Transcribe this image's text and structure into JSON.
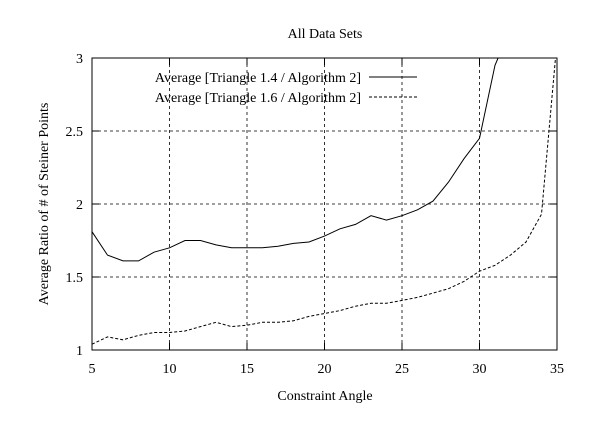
{
  "chart_data": {
    "type": "line",
    "title": "All Data Sets",
    "xlabel": "Constraint Angle",
    "ylabel": "Average Ratio of # of Steiner Points",
    "xlim": [
      5,
      35
    ],
    "ylim": [
      1,
      3
    ],
    "xticks": [
      5,
      10,
      15,
      20,
      25,
      30,
      35
    ],
    "yticks": [
      1,
      1.5,
      2,
      2.5,
      3
    ],
    "xtick_labels": [
      "5",
      "10",
      "15",
      "20",
      "25",
      "30",
      "35"
    ],
    "ytick_labels": [
      "1",
      "1.5",
      "2",
      "2.5",
      "3"
    ],
    "grid": true,
    "legend_position": "top-left",
    "series": [
      {
        "name": "Average [Triangle 1.4 / Algorithm 2]",
        "dash": "solid",
        "x": [
          5,
          6,
          7,
          8,
          9,
          10,
          11,
          12,
          13,
          14,
          15,
          16,
          17,
          18,
          19,
          20,
          21,
          22,
          23,
          24,
          25,
          26,
          27,
          28,
          29,
          30,
          31,
          31.2
        ],
        "y": [
          1.81,
          1.65,
          1.61,
          1.61,
          1.67,
          1.7,
          1.75,
          1.75,
          1.72,
          1.7,
          1.7,
          1.7,
          1.71,
          1.73,
          1.74,
          1.78,
          1.83,
          1.86,
          1.92,
          1.89,
          1.92,
          1.96,
          2.02,
          2.15,
          2.31,
          2.45,
          2.95,
          3.0
        ]
      },
      {
        "name": "Average [Triangle 1.6 / Algorithm 2]",
        "dash": "dashed",
        "x": [
          5,
          6,
          7,
          8,
          9,
          10,
          11,
          12,
          13,
          14,
          15,
          16,
          17,
          18,
          19,
          20,
          21,
          22,
          23,
          24,
          25,
          26,
          27,
          28,
          29,
          30,
          31,
          32,
          33,
          34,
          34.9
        ],
        "y": [
          1.04,
          1.09,
          1.07,
          1.1,
          1.12,
          1.12,
          1.13,
          1.16,
          1.19,
          1.16,
          1.17,
          1.19,
          1.19,
          1.2,
          1.23,
          1.25,
          1.27,
          1.3,
          1.32,
          1.32,
          1.34,
          1.36,
          1.39,
          1.42,
          1.47,
          1.54,
          1.58,
          1.65,
          1.74,
          1.93,
          3.0
        ]
      }
    ]
  }
}
